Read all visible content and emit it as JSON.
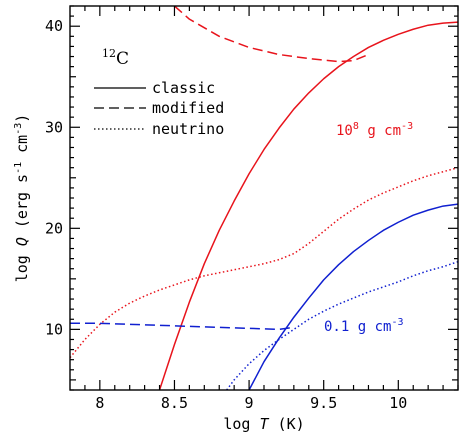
{
  "chart_data": {
    "type": "line",
    "xlabel_prefix": "log ",
    "xlabel_var": "T",
    "xlabel_suffix": " (K)",
    "ylabel_prefix": "log ",
    "ylabel_var": "Q",
    "ylabel_units_a": " (erg s",
    "ylabel_units_b": "-1",
    "ylabel_units_c": " cm",
    "ylabel_units_d": "-3",
    "ylabel_units_e": ")",
    "xlim": [
      7.8,
      10.4
    ],
    "ylim": [
      4,
      42
    ],
    "x_ticks": [
      8,
      8.5,
      9,
      9.5,
      10
    ],
    "x_tick_labels": [
      "8",
      "8.5",
      "9",
      "9.5",
      "10"
    ],
    "y_ticks": [
      10,
      20,
      30,
      40
    ],
    "y_tick_labels": [
      "10",
      "20",
      "30",
      "40"
    ],
    "species_mass": "12",
    "species_symbol": "C",
    "legend": [
      {
        "label": "classic",
        "style": "solid"
      },
      {
        "label": "modified",
        "style": "dashed"
      },
      {
        "label": "neutrino",
        "style": "dotted"
      }
    ],
    "annotations": {
      "high_density": {
        "base": "10",
        "exp": "8",
        "unit_a": " g cm",
        "unit_exp": "-3",
        "color": "#e8141c"
      },
      "low_density": {
        "text_a": "0.1 g cm",
        "exp": "-3",
        "color": "#1020d0"
      }
    },
    "series": [
      {
        "density_label": "high",
        "process": "classic",
        "style": "solid",
        "color": "#e8141c",
        "x": [
          8.4,
          8.5,
          8.6,
          8.7,
          8.8,
          8.9,
          9.0,
          9.1,
          9.2,
          9.3,
          9.4,
          9.5,
          9.6,
          9.7,
          9.8,
          9.9,
          10.0,
          10.1,
          10.2,
          10.3,
          10.4
        ],
        "y": [
          4.0,
          8.5,
          12.7,
          16.5,
          19.8,
          22.7,
          25.4,
          27.8,
          29.9,
          31.8,
          33.4,
          34.8,
          36.0,
          37.0,
          37.9,
          38.6,
          39.2,
          39.7,
          40.1,
          40.3,
          40.4
        ]
      },
      {
        "density_label": "high",
        "process": "modified",
        "style": "dashed",
        "color": "#e8141c",
        "x": [
          8.5,
          8.6,
          8.8,
          9.0,
          9.2,
          9.4,
          9.6,
          9.7,
          9.8
        ],
        "y": [
          42.0,
          40.7,
          39.0,
          37.9,
          37.2,
          36.8,
          36.5,
          36.6,
          37.2
        ]
      },
      {
        "density_label": "high",
        "process": "neutrino",
        "style": "dotted",
        "color": "#e8141c",
        "x": [
          7.8,
          7.9,
          8.0,
          8.1,
          8.2,
          8.3,
          8.4,
          8.5,
          8.6,
          8.7,
          8.8,
          8.9,
          9.0,
          9.1,
          9.2,
          9.3,
          9.4,
          9.5,
          9.6,
          9.7,
          9.8,
          9.9,
          10.0,
          10.1,
          10.2,
          10.3,
          10.4
        ],
        "y": [
          7.2,
          9.0,
          10.5,
          11.7,
          12.6,
          13.3,
          13.9,
          14.4,
          14.9,
          15.3,
          15.6,
          15.9,
          16.2,
          16.5,
          16.9,
          17.5,
          18.5,
          19.7,
          20.9,
          21.9,
          22.8,
          23.5,
          24.1,
          24.7,
          25.2,
          25.6,
          26.0
        ]
      },
      {
        "density_label": "low",
        "process": "classic",
        "style": "solid",
        "color": "#1020d0",
        "x": [
          9.0,
          9.1,
          9.2,
          9.3,
          9.4,
          9.5,
          9.6,
          9.7,
          9.8,
          9.9,
          10.0,
          10.1,
          10.2,
          10.3,
          10.4
        ],
        "y": [
          4.0,
          6.8,
          9.1,
          11.2,
          13.1,
          14.9,
          16.4,
          17.7,
          18.8,
          19.8,
          20.6,
          21.3,
          21.8,
          22.2,
          22.4
        ]
      },
      {
        "density_label": "low",
        "process": "modified",
        "style": "dashed",
        "color": "#1020d0",
        "x": [
          7.8,
          8.0,
          8.2,
          8.4,
          8.6,
          8.8,
          9.0,
          9.2,
          9.3
        ],
        "y": [
          10.6,
          10.6,
          10.5,
          10.4,
          10.3,
          10.2,
          10.1,
          10.0,
          10.2
        ]
      },
      {
        "density_label": "low",
        "process": "neutrino",
        "style": "dotted",
        "color": "#1020d0",
        "x": [
          8.85,
          8.9,
          9.0,
          9.1,
          9.2,
          9.3,
          9.4,
          9.5,
          9.6,
          9.7,
          9.8,
          9.9,
          10.0,
          10.1,
          10.2,
          10.3,
          10.4
        ],
        "y": [
          4.0,
          5.0,
          6.6,
          7.9,
          9.0,
          10.0,
          11.0,
          11.8,
          12.5,
          13.1,
          13.7,
          14.2,
          14.7,
          15.3,
          15.8,
          16.2,
          16.7
        ]
      }
    ]
  }
}
